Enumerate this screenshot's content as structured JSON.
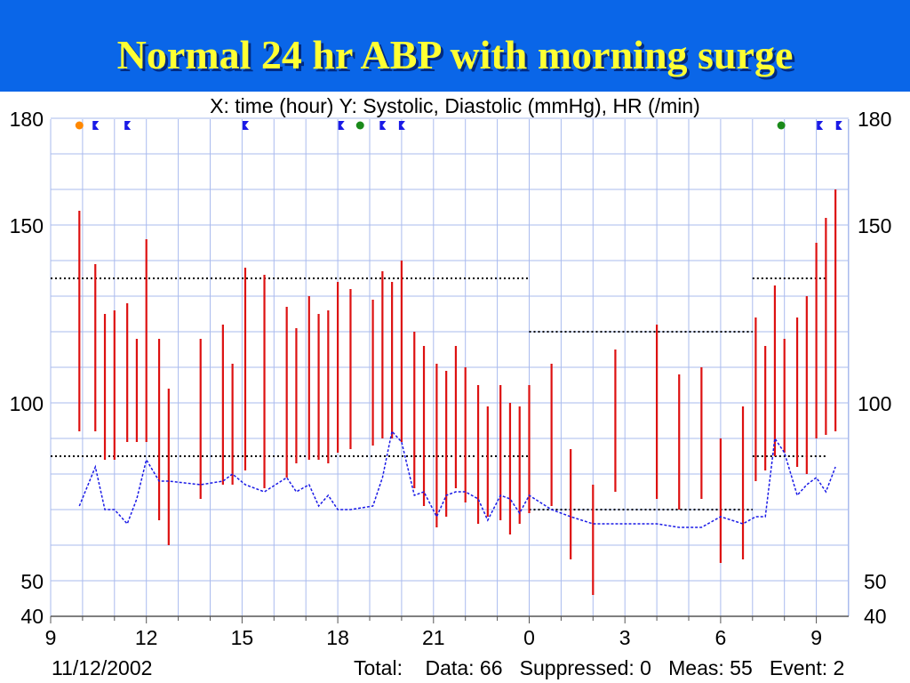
{
  "title": "Normal 24 hr ABP with morning surge",
  "subtitle": "X: time (hour)  Y: Systolic, Diastolic (mmHg), HR (/min)",
  "footer": {
    "date": "11/12/2002",
    "stats": "Total:    Data: 66   Suppressed: 0   Meas: 55   Event: 2"
  },
  "colors": {
    "banner": "#0a66e8",
    "title": "#ffff33",
    "bp_bar": "#dd1111",
    "hr_line": "#1a1ae6",
    "grid": "#aabbee",
    "threshold": "#000000"
  },
  "chart_data": {
    "type": "line",
    "x_unit": "clock hour (9 AM day 1 through 10 AM day 2; 0 = midnight)",
    "x_range": [
      9,
      33.3
    ],
    "x_tick_labels": [
      "9",
      "12",
      "15",
      "18",
      "21",
      "0",
      "3",
      "6",
      "9"
    ],
    "y_range": [
      40,
      180
    ],
    "y_tick_labels": [
      "180",
      "150",
      "100",
      "50",
      "40"
    ],
    "grid": true,
    "series": [
      {
        "kind": "range_bars",
        "points": [
          {
            "x": 9.9,
            "high": 154,
            "low": 92
          },
          {
            "x": 10.4,
            "high": 139,
            "low": 92
          },
          {
            "x": 10.7,
            "high": 125,
            "low": 84
          },
          {
            "x": 11.0,
            "high": 126,
            "low": 84
          },
          {
            "x": 11.4,
            "high": 128,
            "low": 89
          },
          {
            "x": 11.7,
            "high": 118,
            "low": 89
          },
          {
            "x": 12.0,
            "high": 146,
            "low": 89
          },
          {
            "x": 12.4,
            "high": 118,
            "low": 67
          },
          {
            "x": 12.7,
            "high": 104,
            "low": 60
          },
          {
            "x": 13.7,
            "high": 118,
            "low": 73
          },
          {
            "x": 14.4,
            "high": 122,
            "low": 77
          },
          {
            "x": 14.7,
            "high": 111,
            "low": 77
          },
          {
            "x": 15.1,
            "high": 138,
            "low": 81
          },
          {
            "x": 15.7,
            "high": 136,
            "low": 76
          },
          {
            "x": 16.4,
            "high": 127,
            "low": 79
          },
          {
            "x": 16.7,
            "high": 121,
            "low": 83
          },
          {
            "x": 17.1,
            "high": 130,
            "low": 84
          },
          {
            "x": 17.4,
            "high": 125,
            "low": 84
          },
          {
            "x": 17.7,
            "high": 126,
            "low": 83
          },
          {
            "x": 18.0,
            "high": 134,
            "low": 86
          },
          {
            "x": 18.4,
            "high": 132,
            "low": 87
          },
          {
            "x": 19.1,
            "high": 129,
            "low": 88
          },
          {
            "x": 19.4,
            "high": 137,
            "low": 90
          },
          {
            "x": 19.7,
            "high": 134,
            "low": 90
          },
          {
            "x": 20.0,
            "high": 140,
            "low": 89
          },
          {
            "x": 20.4,
            "high": 120,
            "low": 76
          },
          {
            "x": 20.7,
            "high": 116,
            "low": 71
          },
          {
            "x": 21.1,
            "high": 111,
            "low": 65
          },
          {
            "x": 21.4,
            "high": 109,
            "low": 68
          },
          {
            "x": 21.7,
            "high": 116,
            "low": 76
          },
          {
            "x": 22.0,
            "high": 110,
            "low": 72
          },
          {
            "x": 22.4,
            "high": 105,
            "low": 66
          },
          {
            "x": 22.7,
            "high": 99,
            "low": 68
          },
          {
            "x": 23.1,
            "high": 105,
            "low": 67
          },
          {
            "x": 23.4,
            "high": 100,
            "low": 63
          },
          {
            "x": 23.7,
            "high": 99,
            "low": 66
          },
          {
            "x": 24.0,
            "high": 105,
            "low": 69
          },
          {
            "x": 24.7,
            "high": 111,
            "low": 71
          },
          {
            "x": 25.3,
            "high": 87,
            "low": 56
          },
          {
            "x": 26.0,
            "high": 77,
            "low": 46
          },
          {
            "x": 26.7,
            "high": 115,
            "low": 75
          },
          {
            "x": 28.0,
            "high": 122,
            "low": 73
          },
          {
            "x": 28.7,
            "high": 108,
            "low": 70
          },
          {
            "x": 29.4,
            "high": 110,
            "low": 73
          },
          {
            "x": 30.0,
            "high": 90,
            "low": 55
          },
          {
            "x": 30.7,
            "high": 99,
            "low": 56
          },
          {
            "x": 31.1,
            "high": 124,
            "low": 78
          },
          {
            "x": 31.4,
            "high": 116,
            "low": 81
          },
          {
            "x": 31.7,
            "high": 133,
            "low": 85
          },
          {
            "x": 32.0,
            "high": 118,
            "low": 86
          },
          {
            "x": 32.4,
            "high": 124,
            "low": 82
          },
          {
            "x": 32.7,
            "high": 130,
            "low": 80
          },
          {
            "x": 33.0,
            "high": 145,
            "low": 90
          },
          {
            "x": 33.3,
            "high": 152,
            "low": 91
          },
          {
            "x": 33.6,
            "high": 160,
            "low": 92
          }
        ]
      },
      {
        "kind": "line",
        "x": [
          9.9,
          10.4,
          10.7,
          11.0,
          11.4,
          11.7,
          12.0,
          12.4,
          12.7,
          13.7,
          14.4,
          14.7,
          15.1,
          15.7,
          16.4,
          16.7,
          17.1,
          17.4,
          17.7,
          18.0,
          18.4,
          19.1,
          19.4,
          19.7,
          20.0,
          20.4,
          20.7,
          21.1,
          21.4,
          21.7,
          22.0,
          22.4,
          22.7,
          23.1,
          23.4,
          23.7,
          24.0,
          24.7,
          25.3,
          26.0,
          26.7,
          28.0,
          28.7,
          29.4,
          30.0,
          30.7,
          31.1,
          31.4,
          31.7,
          32.0,
          32.4,
          32.7,
          33.0,
          33.3,
          33.6
        ],
        "values": [
          71,
          82,
          70,
          70,
          66,
          73,
          84,
          78,
          78,
          77,
          78,
          80,
          77,
          75,
          79,
          75,
          77,
          71,
          74,
          70,
          70,
          71,
          79,
          92,
          89,
          74,
          75,
          68,
          74,
          75,
          75,
          73,
          67,
          74,
          73,
          69,
          74,
          70,
          68,
          66,
          66,
          66,
          65,
          65,
          68,
          66,
          68,
          68,
          90,
          86,
          74,
          77,
          79,
          75,
          82
        ]
      }
    ],
    "thresholds": [
      {
        "y": 135,
        "x_from": 9,
        "x_to": 24
      },
      {
        "y": 85,
        "x_from": 9,
        "x_to": 24
      },
      {
        "y": 120,
        "x_from": 24,
        "x_to": 31
      },
      {
        "y": 70,
        "x_from": 24,
        "x_to": 31
      },
      {
        "y": 135,
        "x_from": 31,
        "x_to": 33.3
      },
      {
        "y": 85,
        "x_from": 31,
        "x_to": 33.3
      }
    ],
    "markers": [
      {
        "x": 9.9,
        "type": "event-circle",
        "color": "#ff8800"
      },
      {
        "x": 10.4,
        "type": "flag",
        "color": "#1a1ae6"
      },
      {
        "x": 11.4,
        "type": "flag",
        "color": "#1a1ae6"
      },
      {
        "x": 15.1,
        "type": "flag",
        "color": "#1a1ae6"
      },
      {
        "x": 18.1,
        "type": "flag",
        "color": "#1a1ae6"
      },
      {
        "x": 18.7,
        "type": "event-circle",
        "color": "#1a8a1a"
      },
      {
        "x": 19.4,
        "type": "flag",
        "color": "#1a1ae6"
      },
      {
        "x": 20.0,
        "type": "flag",
        "color": "#1a1ae6"
      },
      {
        "x": 31.9,
        "type": "event-circle",
        "color": "#1a8a1a"
      },
      {
        "x": 33.1,
        "type": "flag",
        "color": "#1a1ae6"
      },
      {
        "x": 33.7,
        "type": "flag",
        "color": "#1a1ae6"
      }
    ]
  }
}
